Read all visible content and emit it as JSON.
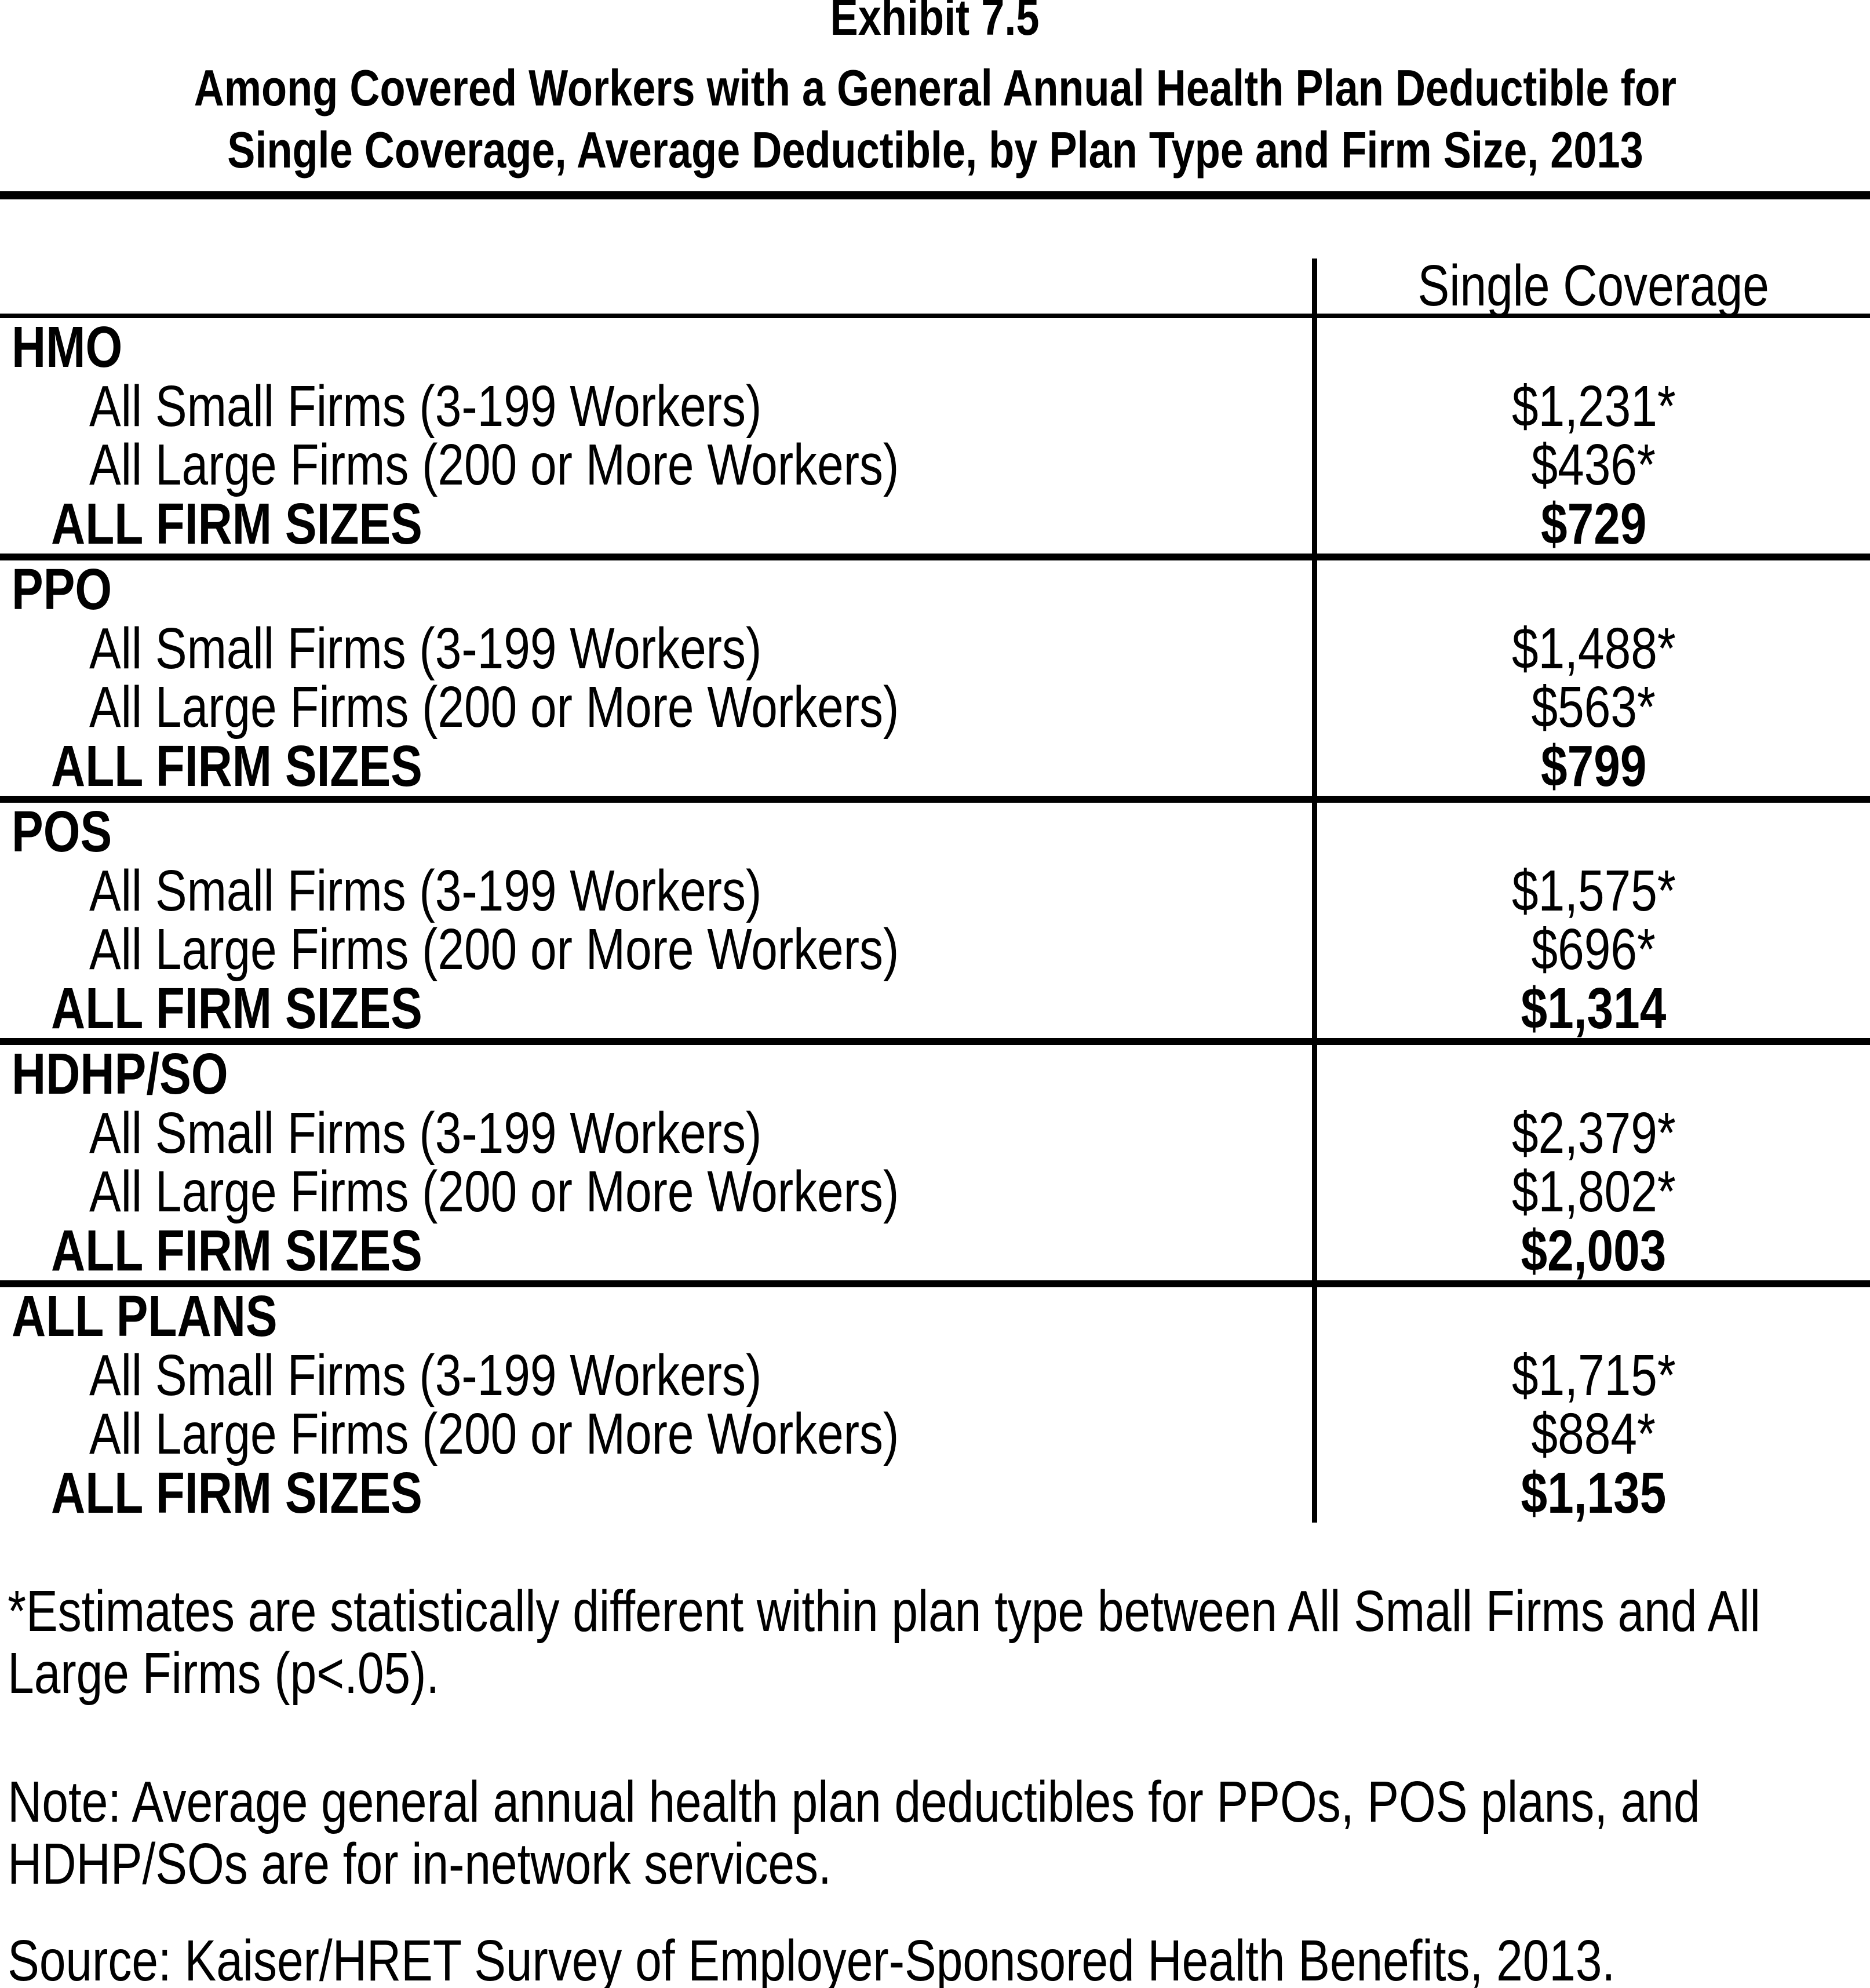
{
  "page": {
    "title": "Exhibit 7.5",
    "subtitle_line1": "Among Covered Workers with a General Annual Health Plan Deductible for",
    "subtitle_line2": "Single Coverage, Average Deductible, by Plan Type and Firm Size, 2013"
  },
  "table": {
    "column_header": "Single Coverage",
    "row_labels": {
      "small_firms": "All Small Firms (3-199 Workers)",
      "large_firms": "All Large Firms (200 or More Workers)",
      "all_firm_sizes": "ALL FIRM SIZES"
    },
    "sections": [
      {
        "plan": "HMO",
        "small_firms_value": "$1,231*",
        "large_firms_value": "$436*",
        "all_firm_sizes_value": "$729"
      },
      {
        "plan": "PPO",
        "small_firms_value": "$1,488*",
        "large_firms_value": "$563*",
        "all_firm_sizes_value": "$799"
      },
      {
        "plan": "POS",
        "small_firms_value": "$1,575*",
        "large_firms_value": "$696*",
        "all_firm_sizes_value": "$1,314"
      },
      {
        "plan": "HDHP/SO",
        "small_firms_value": "$2,379*",
        "large_firms_value": "$1,802*",
        "all_firm_sizes_value": "$2,003"
      },
      {
        "plan": "ALL PLANS",
        "small_firms_value": "$1,715*",
        "large_firms_value": "$884*",
        "all_firm_sizes_value": "$1,135"
      }
    ]
  },
  "footnotes": {
    "significance": "*Estimates are statistically different within plan type between All Small Firms and All Large Firms (p<.05).",
    "note": "Note: Average general annual health plan deductibles for PPOs, POS plans, and HDHP/SOs are for in-network services.",
    "source": "Source: Kaiser/HRET Survey of Employer-Sponsored Health Benefits, 2013."
  },
  "colors": {
    "text": "#000000",
    "background": "#ffffff",
    "rule": "#000000"
  }
}
